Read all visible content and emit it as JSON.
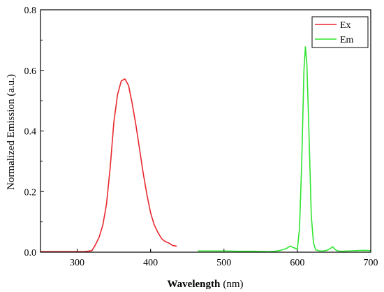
{
  "chart_data": {
    "type": "line",
    "title": "",
    "xlabel": "Wavelength",
    "xlabel_unit": "(nm)",
    "ylabel": "Normalized Emission (a.u.)",
    "xlim": [
      250,
      700
    ],
    "ylim": [
      0.0,
      0.8
    ],
    "x_ticks": [
      300,
      400,
      500,
      600,
      700
    ],
    "x_tick_labels": [
      "300",
      "400",
      "500",
      "600",
      "700"
    ],
    "y_ticks": [
      0.0,
      0.2,
      0.4,
      0.6,
      0.8
    ],
    "y_tick_labels": [
      "0.0",
      "0.2",
      "0.4",
      "0.6",
      "0.8"
    ],
    "grid": false,
    "legend_position": "top-right",
    "series": [
      {
        "name": "Ex",
        "color": "#e8272d",
        "x": [
          250,
          280,
          310,
          320,
          325,
          330,
          335,
          340,
          345,
          350,
          355,
          360,
          365,
          370,
          375,
          380,
          385,
          390,
          395,
          400,
          405,
          410,
          415,
          420,
          425,
          430,
          435
        ],
        "y": [
          0.002,
          0.002,
          0.002,
          0.005,
          0.025,
          0.05,
          0.09,
          0.16,
          0.28,
          0.43,
          0.52,
          0.565,
          0.572,
          0.55,
          0.49,
          0.42,
          0.34,
          0.26,
          0.19,
          0.13,
          0.09,
          0.065,
          0.045,
          0.035,
          0.03,
          0.022,
          0.02
        ]
      },
      {
        "name": "Em",
        "color": "#2fe52f",
        "x": [
          465,
          480,
          500,
          520,
          540,
          560,
          570,
          575,
          580,
          585,
          590,
          595,
          600,
          603,
          606,
          609,
          611,
          613,
          616,
          619,
          622,
          625,
          630,
          635,
          640,
          645,
          648,
          652,
          655,
          660,
          670,
          680,
          690,
          700
        ],
        "y": [
          0.004,
          0.004,
          0.004,
          0.003,
          0.003,
          0.002,
          0.003,
          0.005,
          0.008,
          0.012,
          0.02,
          0.015,
          0.01,
          0.08,
          0.3,
          0.6,
          0.678,
          0.62,
          0.38,
          0.12,
          0.03,
          0.008,
          0.004,
          0.004,
          0.006,
          0.012,
          0.018,
          0.008,
          0.004,
          0.003,
          0.004,
          0.005,
          0.006,
          0.005
        ]
      }
    ]
  }
}
